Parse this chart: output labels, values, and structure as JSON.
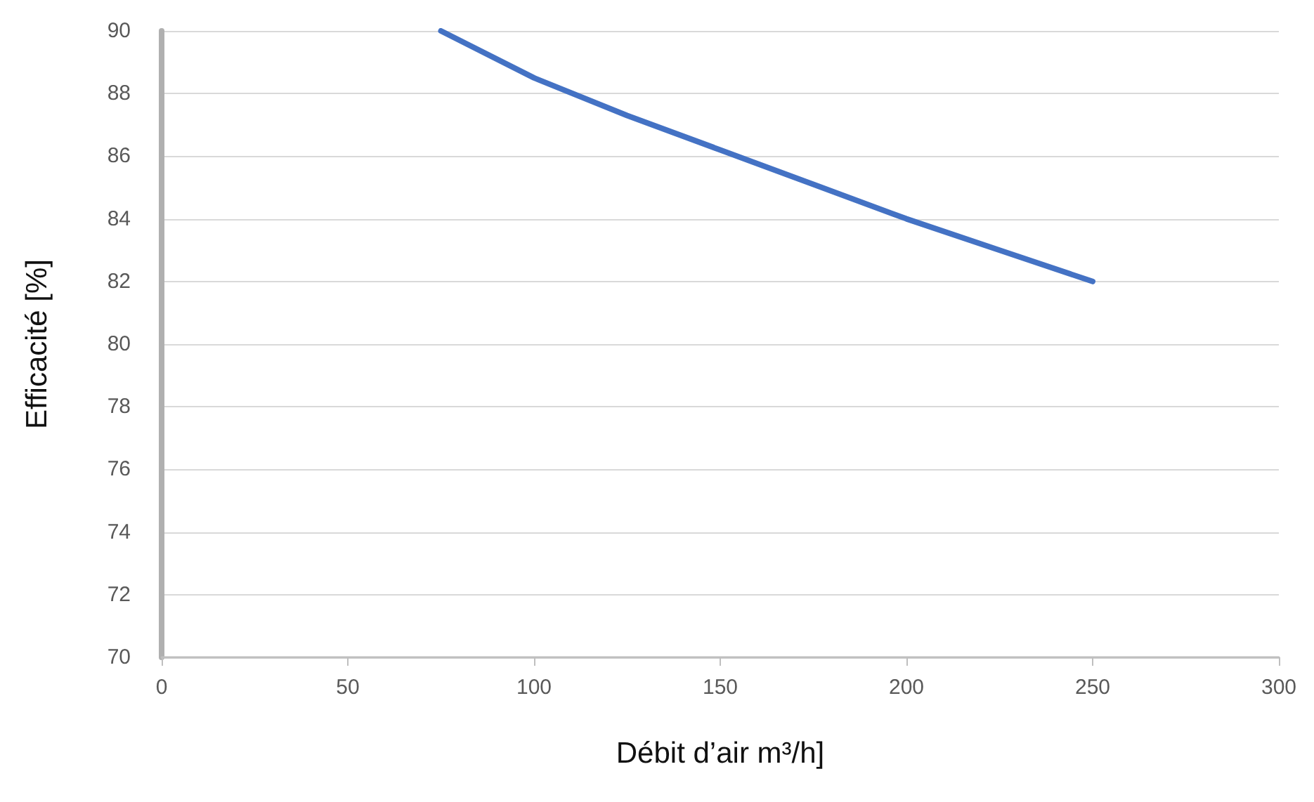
{
  "chart_data": {
    "type": "line",
    "xlabel": "Débit d’air m³/h]",
    "ylabel": "Efficacité [%]",
    "x": [
      75,
      100,
      125,
      150,
      175,
      200,
      225,
      250
    ],
    "series": [
      {
        "color": "#4472c4",
        "values": [
          90,
          88.5,
          87.3,
          86.2,
          85.1,
          84.0,
          83.0,
          82.0
        ]
      }
    ],
    "xlim": [
      0,
      300
    ],
    "xticks": [
      0,
      50,
      100,
      150,
      200,
      250,
      300
    ],
    "ylim": [
      70,
      90
    ],
    "yticks": [
      70,
      72,
      74,
      76,
      78,
      80,
      82,
      84,
      86,
      88,
      90
    ],
    "grid": "y",
    "marker": "none",
    "line_style": "solid"
  }
}
